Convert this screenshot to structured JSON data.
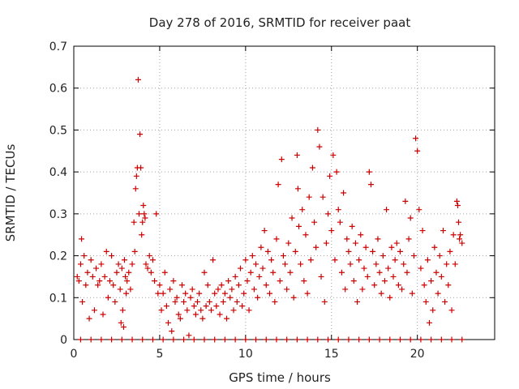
{
  "chart_data": {
    "type": "scatter",
    "title": "Day 278 of 2016, SRMTID for receiver paat",
    "xlabel": "GPS time / hours",
    "ylabel": "SRMTID / TECUs",
    "xlim": [
      0,
      24.5
    ],
    "ylim": [
      0,
      0.7
    ],
    "xticks": [
      0,
      5,
      10,
      15,
      20
    ],
    "xtick_labels": [
      "0",
      "5",
      "10",
      "15",
      "20"
    ],
    "yticks": [
      0,
      0.1,
      0.2,
      0.3,
      0.4,
      0.5,
      0.6,
      0.7
    ],
    "ytick_labels": [
      "0",
      "0.1",
      "0.2",
      "0.3",
      "0.4",
      "0.5",
      "0.6",
      "0.7"
    ],
    "grid": true,
    "marker": "+",
    "color": "#cc0000",
    "series": [
      {
        "name": "SRMTID",
        "points": [
          [
            0.2,
            0.15
          ],
          [
            0.3,
            0.14
          ],
          [
            0.4,
            0.18
          ],
          [
            0.45,
            0.24
          ],
          [
            0.5,
            0.09
          ],
          [
            0.6,
            0.2
          ],
          [
            0.7,
            0.13
          ],
          [
            0.8,
            0.16
          ],
          [
            0.9,
            0.05
          ],
          [
            1.0,
            0.19
          ],
          [
            1.1,
            0.15
          ],
          [
            1.2,
            0.07
          ],
          [
            1.3,
            0.17
          ],
          [
            1.4,
            0.13
          ],
          [
            1.5,
            0.14
          ],
          [
            1.6,
            0.18
          ],
          [
            1.7,
            0.06
          ],
          [
            1.8,
            0.15
          ],
          [
            1.9,
            0.21
          ],
          [
            2.0,
            0.1
          ],
          [
            2.1,
            0.14
          ],
          [
            2.2,
            0.2
          ],
          [
            2.3,
            0.13
          ],
          [
            2.4,
            0.09
          ],
          [
            2.5,
            0.16
          ],
          [
            2.6,
            0.18
          ],
          [
            2.7,
            0.12
          ],
          [
            2.75,
            0.04
          ],
          [
            2.8,
            0.17
          ],
          [
            2.85,
            0.07
          ],
          [
            2.9,
            0.03
          ],
          [
            2.95,
            0.19
          ],
          [
            3.0,
            0.15
          ],
          [
            3.05,
            0.11
          ],
          [
            3.1,
            0.14
          ],
          [
            3.2,
            0.16
          ],
          [
            3.3,
            0.12
          ],
          [
            3.4,
            0.18
          ],
          [
            3.5,
            0.28
          ],
          [
            3.55,
            0.21
          ],
          [
            3.6,
            0.36
          ],
          [
            3.65,
            0.39
          ],
          [
            3.7,
            0.41
          ],
          [
            3.75,
            0.62
          ],
          [
            3.8,
            0.3
          ],
          [
            3.85,
            0.49
          ],
          [
            3.9,
            0.41
          ],
          [
            3.95,
            0.25
          ],
          [
            4.0,
            0.28
          ],
          [
            4.05,
            0.32
          ],
          [
            4.1,
            0.3
          ],
          [
            4.15,
            0.29
          ],
          [
            4.2,
            0.18
          ],
          [
            4.3,
            0.17
          ],
          [
            4.4,
            0.2
          ],
          [
            4.5,
            0.16
          ],
          [
            4.6,
            0.19
          ],
          [
            4.7,
            0.14
          ],
          [
            4.8,
            0.3
          ],
          [
            4.9,
            0.11
          ],
          [
            5.0,
            0.13
          ],
          [
            5.1,
            0.07
          ],
          [
            5.2,
            0.11
          ],
          [
            5.3,
            0.16
          ],
          [
            5.4,
            0.08
          ],
          [
            5.5,
            0.04
          ],
          [
            5.6,
            0.12
          ],
          [
            5.7,
            0.02
          ],
          [
            5.8,
            0.14
          ],
          [
            5.9,
            0.09
          ],
          [
            6.0,
            0.1
          ],
          [
            6.1,
            0.06
          ],
          [
            6.2,
            0.05
          ],
          [
            6.3,
            0.13
          ],
          [
            6.4,
            0.09
          ],
          [
            6.5,
            0.11
          ],
          [
            6.6,
            0.07
          ],
          [
            6.7,
            0.01
          ],
          [
            6.8,
            0.1
          ],
          [
            6.9,
            0.12
          ],
          [
            7.0,
            0.08
          ],
          [
            7.1,
            0.06
          ],
          [
            7.2,
            0.09
          ],
          [
            7.3,
            0.11
          ],
          [
            7.4,
            0.07
          ],
          [
            7.5,
            0.05
          ],
          [
            7.6,
            0.16
          ],
          [
            7.7,
            0.08
          ],
          [
            7.8,
            0.13
          ],
          [
            7.9,
            0.09
          ],
          [
            8.0,
            0.07
          ],
          [
            8.1,
            0.19
          ],
          [
            8.2,
            0.11
          ],
          [
            8.3,
            0.08
          ],
          [
            8.4,
            0.12
          ],
          [
            8.5,
            0.06
          ],
          [
            8.6,
            0.13
          ],
          [
            8.7,
            0.09
          ],
          [
            8.8,
            0.11
          ],
          [
            8.9,
            0.05
          ],
          [
            9.0,
            0.14
          ],
          [
            9.1,
            0.1
          ],
          [
            9.2,
            0.12
          ],
          [
            9.3,
            0.07
          ],
          [
            9.4,
            0.15
          ],
          [
            9.5,
            0.09
          ],
          [
            9.6,
            0.13
          ],
          [
            9.7,
            0.17
          ],
          [
            9.8,
            0.08
          ],
          [
            9.9,
            0.11
          ],
          [
            10.0,
            0.19
          ],
          [
            10.1,
            0.14
          ],
          [
            10.2,
            0.07
          ],
          [
            10.3,
            0.16
          ],
          [
            10.4,
            0.2
          ],
          [
            10.5,
            0.12
          ],
          [
            10.6,
            0.18
          ],
          [
            10.7,
            0.1
          ],
          [
            10.8,
            0.15
          ],
          [
            10.9,
            0.22
          ],
          [
            11.0,
            0.17
          ],
          [
            11.1,
            0.26
          ],
          [
            11.2,
            0.13
          ],
          [
            11.3,
            0.21
          ],
          [
            11.4,
            0.11
          ],
          [
            11.5,
            0.19
          ],
          [
            11.6,
            0.16
          ],
          [
            11.7,
            0.09
          ],
          [
            11.8,
            0.24
          ],
          [
            11.9,
            0.37
          ],
          [
            12.0,
            0.14
          ],
          [
            12.1,
            0.43
          ],
          [
            12.2,
            0.2
          ],
          [
            12.3,
            0.18
          ],
          [
            12.4,
            0.12
          ],
          [
            12.5,
            0.23
          ],
          [
            12.6,
            0.16
          ],
          [
            12.7,
            0.29
          ],
          [
            12.8,
            0.1
          ],
          [
            12.9,
            0.21
          ],
          [
            13.0,
            0.44
          ],
          [
            13.05,
            0.36
          ],
          [
            13.1,
            0.27
          ],
          [
            13.2,
            0.18
          ],
          [
            13.3,
            0.31
          ],
          [
            13.4,
            0.14
          ],
          [
            13.5,
            0.25
          ],
          [
            13.6,
            0.11
          ],
          [
            13.7,
            0.34
          ],
          [
            13.8,
            0.19
          ],
          [
            13.9,
            0.41
          ],
          [
            14.0,
            0.28
          ],
          [
            14.1,
            0.22
          ],
          [
            14.2,
            0.5
          ],
          [
            14.3,
            0.46
          ],
          [
            14.4,
            0.15
          ],
          [
            14.5,
            0.34
          ],
          [
            14.6,
            0.09
          ],
          [
            14.7,
            0.23
          ],
          [
            14.8,
            0.3
          ],
          [
            14.9,
            0.39
          ],
          [
            15.0,
            0.26
          ],
          [
            15.1,
            0.44
          ],
          [
            15.2,
            0.19
          ],
          [
            15.3,
            0.4
          ],
          [
            15.4,
            0.31
          ],
          [
            15.5,
            0.28
          ],
          [
            15.6,
            0.16
          ],
          [
            15.7,
            0.35
          ],
          [
            15.8,
            0.12
          ],
          [
            15.9,
            0.24
          ],
          [
            16.0,
            0.21
          ],
          [
            16.1,
            0.18
          ],
          [
            16.2,
            0.27
          ],
          [
            16.3,
            0.14
          ],
          [
            16.4,
            0.23
          ],
          [
            16.5,
            0.09
          ],
          [
            16.6,
            0.19
          ],
          [
            16.7,
            0.25
          ],
          [
            16.8,
            0.12
          ],
          [
            16.9,
            0.17
          ],
          [
            17.0,
            0.22
          ],
          [
            17.1,
            0.15
          ],
          [
            17.2,
            0.4
          ],
          [
            17.3,
            0.37
          ],
          [
            17.4,
            0.21
          ],
          [
            17.5,
            0.13
          ],
          [
            17.6,
            0.18
          ],
          [
            17.7,
            0.24
          ],
          [
            17.8,
            0.16
          ],
          [
            17.9,
            0.11
          ],
          [
            18.0,
            0.2
          ],
          [
            18.1,
            0.14
          ],
          [
            18.2,
            0.31
          ],
          [
            18.3,
            0.17
          ],
          [
            18.4,
            0.1
          ],
          [
            18.5,
            0.22
          ],
          [
            18.6,
            0.15
          ],
          [
            18.7,
            0.19
          ],
          [
            18.8,
            0.23
          ],
          [
            18.9,
            0.13
          ],
          [
            19.0,
            0.21
          ],
          [
            19.1,
            0.12
          ],
          [
            19.2,
            0.18
          ],
          [
            19.3,
            0.33
          ],
          [
            19.4,
            0.16
          ],
          [
            19.5,
            0.24
          ],
          [
            19.6,
            0.29
          ],
          [
            19.7,
            0.11
          ],
          [
            19.8,
            0.2
          ],
          [
            19.9,
            0.48
          ],
          [
            20.0,
            0.45
          ],
          [
            20.1,
            0.31
          ],
          [
            20.2,
            0.17
          ],
          [
            20.3,
            0.26
          ],
          [
            20.4,
            0.13
          ],
          [
            20.5,
            0.09
          ],
          [
            20.6,
            0.19
          ],
          [
            20.7,
            0.04
          ],
          [
            20.8,
            0.14
          ],
          [
            20.9,
            0.07
          ],
          [
            21.0,
            0.22
          ],
          [
            21.1,
            0.16
          ],
          [
            21.2,
            0.11
          ],
          [
            21.3,
            0.2
          ],
          [
            21.4,
            0.15
          ],
          [
            21.5,
            0.26
          ],
          [
            21.6,
            0.09
          ],
          [
            21.7,
            0.18
          ],
          [
            21.8,
            0.13
          ],
          [
            21.9,
            0.21
          ],
          [
            22.0,
            0.07
          ],
          [
            22.1,
            0.25
          ],
          [
            22.2,
            0.18
          ],
          [
            22.3,
            0.33
          ],
          [
            22.35,
            0.32
          ],
          [
            22.4,
            0.28
          ],
          [
            22.45,
            0.24
          ],
          [
            22.5,
            0.25
          ],
          [
            22.6,
            0.23
          ],
          [
            0.4,
            0.0
          ],
          [
            1.0,
            0.0
          ],
          [
            1.6,
            0.0
          ],
          [
            2.2,
            0.0
          ],
          [
            2.8,
            0.0
          ],
          [
            3.4,
            0.0
          ],
          [
            4.0,
            0.0
          ],
          [
            4.6,
            0.0
          ],
          [
            5.2,
            0.0
          ],
          [
            5.8,
            0.0
          ],
          [
            6.4,
            0.0
          ],
          [
            7.0,
            0.0
          ],
          [
            7.6,
            0.0
          ],
          [
            8.2,
            0.0
          ],
          [
            8.8,
            0.0
          ],
          [
            9.4,
            0.0
          ],
          [
            10.0,
            0.0
          ],
          [
            10.6,
            0.0
          ],
          [
            11.2,
            0.0
          ],
          [
            11.8,
            0.0
          ],
          [
            12.4,
            0.0
          ],
          [
            13.0,
            0.0
          ],
          [
            13.6,
            0.0
          ],
          [
            14.2,
            0.0
          ],
          [
            14.8,
            0.0
          ],
          [
            15.4,
            0.0
          ],
          [
            16.0,
            0.0
          ],
          [
            16.6,
            0.0
          ],
          [
            17.2,
            0.0
          ],
          [
            17.8,
            0.0
          ],
          [
            18.4,
            0.0
          ],
          [
            19.0,
            0.0
          ],
          [
            19.6,
            0.0
          ],
          [
            20.2,
            0.0
          ],
          [
            20.8,
            0.0
          ],
          [
            21.4,
            0.0
          ],
          [
            22.0,
            0.0
          ],
          [
            22.6,
            0.0
          ]
        ]
      }
    ]
  }
}
